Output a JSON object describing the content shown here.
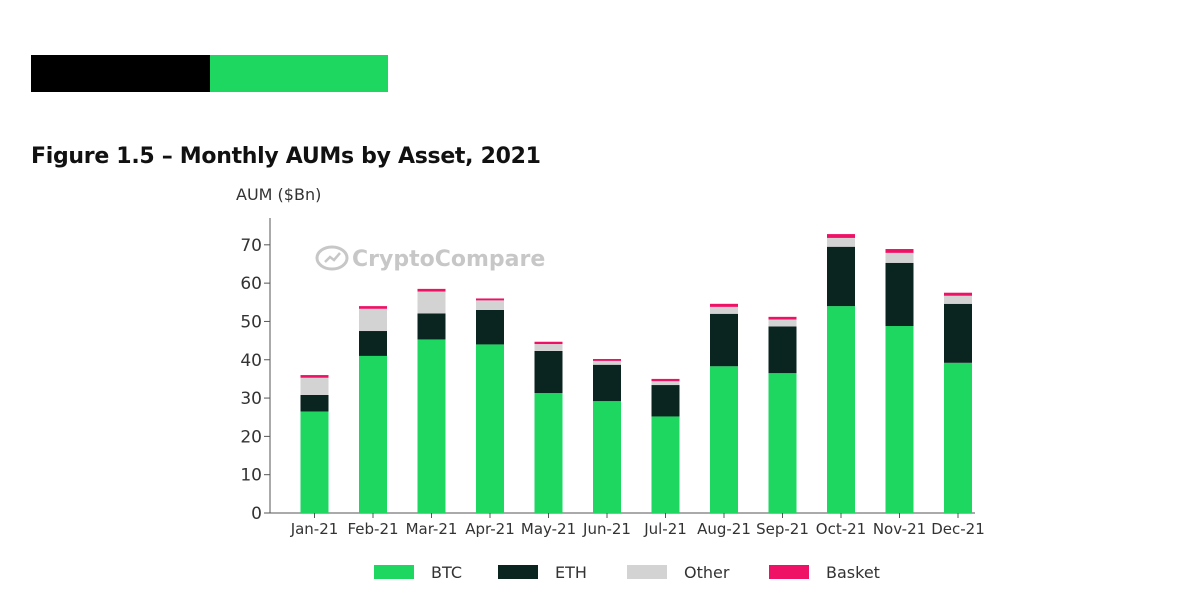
{
  "header": {
    "bar_colors": [
      "#000000",
      "#1ed760"
    ]
  },
  "figure_title": "Figure 1.5 – Monthly AUMs by Asset, 2021",
  "watermark": {
    "text": "CryptoCompare",
    "icon": "cryptocompare-logo-icon"
  },
  "chart_data": {
    "type": "bar",
    "stacked": true,
    "title": "Figure 1.5 – Monthly AUMs by Asset, 2021",
    "xlabel": "",
    "ylabel": "AUM ($Bn)",
    "ylim": [
      0,
      77
    ],
    "yticks": [
      0,
      10,
      20,
      30,
      40,
      50,
      60,
      70
    ],
    "grid": false,
    "legend_position": "bottom",
    "categories": [
      "Jan-21",
      "Feb-21",
      "Mar-21",
      "Apr-21",
      "May-21",
      "Jun-21",
      "Jul-21",
      "Aug-21",
      "Sep-21",
      "Oct-21",
      "Nov-21",
      "Dec-21"
    ],
    "series": [
      {
        "name": "BTC",
        "color": "#1ed760",
        "values": [
          26.5,
          41.0,
          45.3,
          44.0,
          31.3,
          29.2,
          25.2,
          38.3,
          36.5,
          54.0,
          48.8,
          39.2
        ]
      },
      {
        "name": "ETH",
        "color": "#0a2420",
        "values": [
          4.3,
          6.5,
          6.8,
          9.0,
          11.0,
          9.5,
          8.2,
          13.7,
          12.2,
          15.5,
          16.5,
          15.4
        ]
      },
      {
        "name": "Other",
        "color": "#d3d3d3",
        "values": [
          4.5,
          5.8,
          5.7,
          2.5,
          1.8,
          1.0,
          1.0,
          1.8,
          1.8,
          2.3,
          2.6,
          2.1
        ]
      },
      {
        "name": "Basket",
        "color": "#ee1166",
        "values": [
          0.7,
          0.7,
          0.7,
          0.5,
          0.6,
          0.5,
          0.6,
          0.8,
          0.7,
          1.0,
          1.0,
          0.8
        ]
      }
    ]
  }
}
